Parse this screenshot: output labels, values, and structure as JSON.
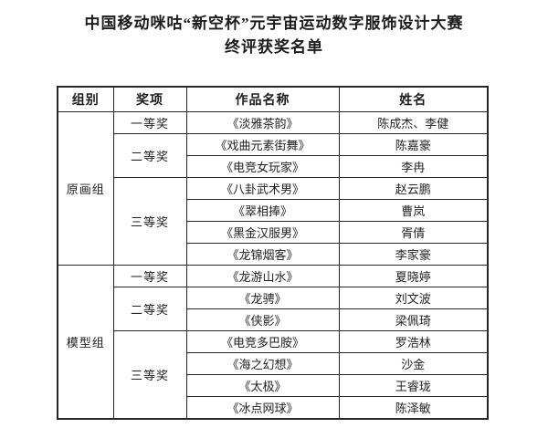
{
  "title": {
    "line1": "中国移动咪咕“新空杯”元宇宙运动数字服饰设计大赛",
    "line2": "终评获奖名单"
  },
  "table": {
    "headers": [
      "组别",
      "奖项",
      "作品名称",
      "姓名"
    ],
    "groups": [
      {
        "name": "原画组",
        "awards": [
          {
            "award": "一等奖",
            "entries": [
              {
                "work": "《淡雅茶韵》",
                "name": "陈成杰、李健"
              }
            ]
          },
          {
            "award": "二等奖",
            "entries": [
              {
                "work": "《戏曲元素街舞》",
                "name": "陈嘉豪"
              },
              {
                "work": "《电竞女玩家》",
                "name": "李冉"
              }
            ]
          },
          {
            "award": "三等奖",
            "entries": [
              {
                "work": "《八卦武术男》",
                "name": "赵云鹏"
              },
              {
                "work": "《翠相捧》",
                "name": "曹岚"
              },
              {
                "work": "《黑金汉服男》",
                "name": "胥倩"
              },
              {
                "work": "《龙锦烟客》",
                "name": "李家豪"
              }
            ]
          }
        ]
      },
      {
        "name": "模型组",
        "awards": [
          {
            "award": "一等奖",
            "entries": [
              {
                "work": "《龙游山水》",
                "name": "夏晓婷"
              }
            ]
          },
          {
            "award": "二等奖",
            "entries": [
              {
                "work": "《龙骋》",
                "name": "刘文波"
              },
              {
                "work": "《侠影》",
                "name": "梁佩琦"
              }
            ]
          },
          {
            "award": "三等奖",
            "entries": [
              {
                "work": "《电竞多巴胺》",
                "name": "罗浩林"
              },
              {
                "work": "《海之幻想》",
                "name": "沙金"
              },
              {
                "work": "《太极》",
                "name": "王睿珑"
              },
              {
                "work": "《冰点网球》",
                "name": "陈泽敏"
              }
            ]
          }
        ]
      }
    ]
  }
}
